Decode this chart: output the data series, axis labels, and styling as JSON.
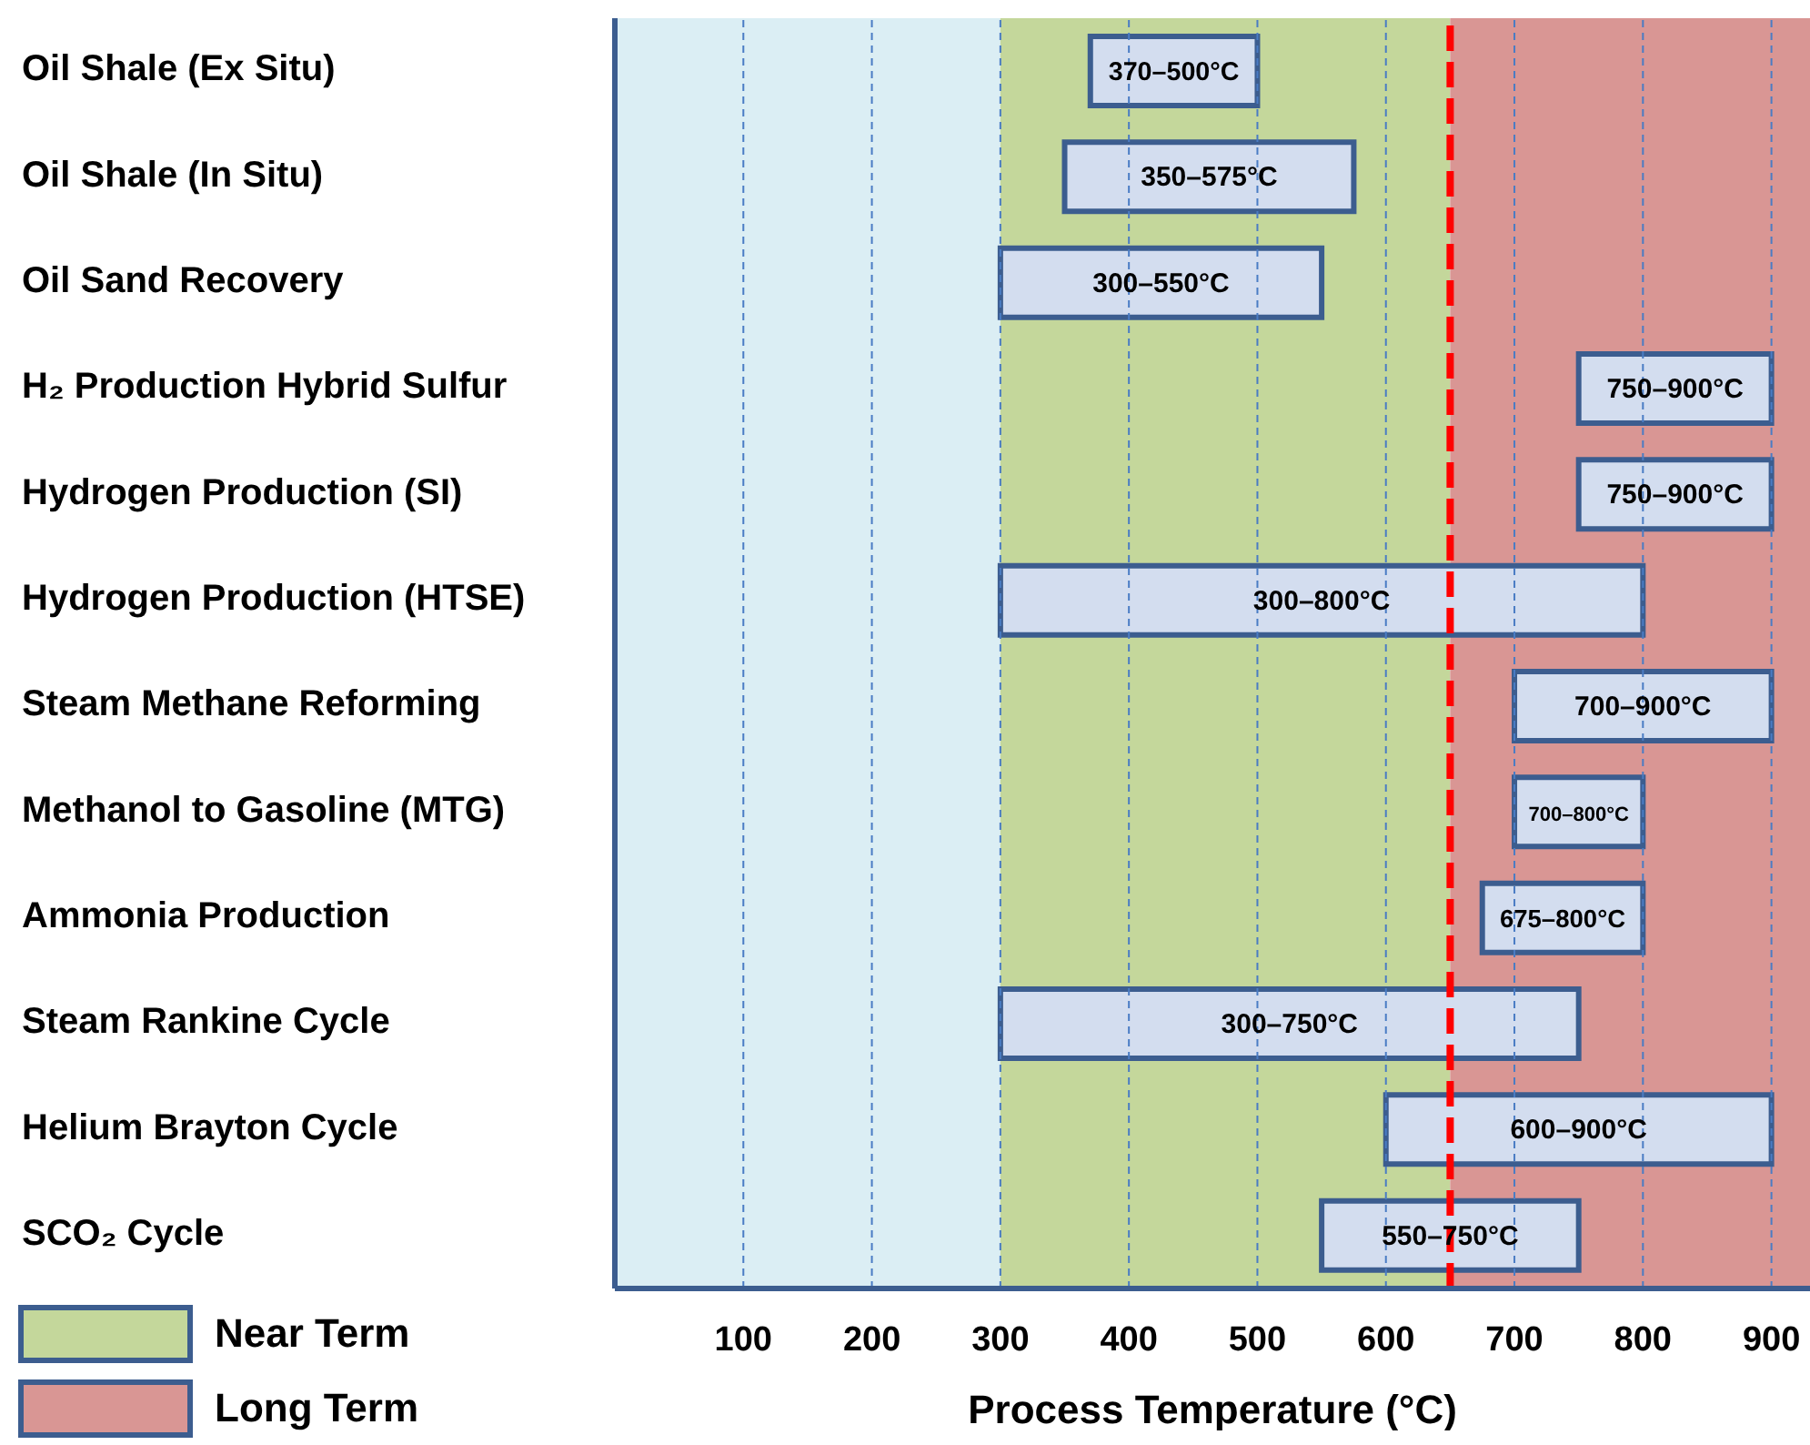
{
  "chart_data": {
    "type": "bar",
    "orientation": "horizontal",
    "xlabel": "Process Temperature (°C)",
    "categories": [
      "Oil Shale (Ex Situ)",
      "Oil Shale (In Situ)",
      "Oil Sand Recovery",
      "H₂ Production Hybrid Sulfur",
      "Hydrogen Production (SI)",
      "Hydrogen Production (HTSE)",
      "Steam Methane Reforming",
      "Methanol to Gasoline (MTG)",
      "Ammonia Production",
      "Steam Rankine Cycle",
      "Helium Brayton Cycle",
      "SCO₂ Cycle"
    ],
    "base": [
      370,
      350,
      300,
      750,
      750,
      300,
      700,
      700,
      675,
      300,
      600,
      550
    ],
    "values": [
      130,
      225,
      250,
      150,
      150,
      500,
      200,
      100,
      125,
      450,
      300,
      200
    ],
    "value_labels": [
      "370–500°C",
      "350–575°C",
      "300–550°C",
      "750–900°C",
      "750–900°C",
      "300–800°C",
      "700–900°C",
      "700–800°C",
      "675–800°C",
      "300–750°C",
      "600–900°C",
      "550–750°C"
    ],
    "color": "#d3ddef",
    "xlim": [
      0,
      930
    ],
    "xticks": [
      100,
      200,
      300,
      400,
      500,
      600,
      700,
      800,
      900
    ],
    "grid": "x",
    "bands": [
      {
        "axis": "x",
        "from": 0,
        "to": 300,
        "color": "#dbeef4"
      },
      {
        "axis": "x",
        "from": 300,
        "to": 650,
        "label": "Near Term",
        "color": "#c4d79b"
      },
      {
        "axis": "x",
        "from": 650,
        "to": 930,
        "label": "Long Term",
        "color": "#d99694"
      }
    ],
    "ref_lines": [
      {
        "axis": "x",
        "value": 650,
        "color": "#ff0000",
        "line_style": "dashed"
      }
    ],
    "legend": "bottom left"
  }
}
